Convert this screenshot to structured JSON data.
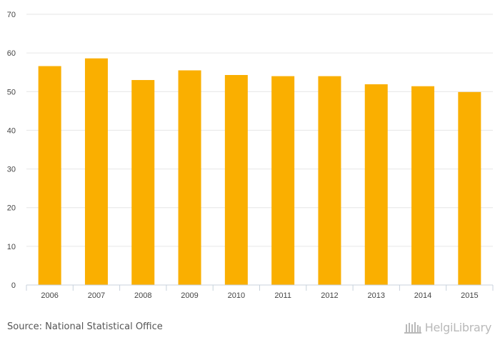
{
  "chart_data": {
    "type": "bar",
    "categories": [
      "2006",
      "2007",
      "2008",
      "2009",
      "2010",
      "2011",
      "2012",
      "2013",
      "2014",
      "2015"
    ],
    "values": [
      56.6,
      58.6,
      53.0,
      55.5,
      54.3,
      54.0,
      54.0,
      51.9,
      51.4,
      49.9
    ],
    "ylim": [
      0,
      70
    ],
    "yticks": [
      0,
      10,
      20,
      30,
      40,
      50,
      60,
      70
    ],
    "title": "",
    "xlabel": "",
    "ylabel": "",
    "grid": true,
    "bar_color": "#FAAF00"
  },
  "footer": {
    "source": "Source: National Statistical Office",
    "brand": "HelgiLibrary"
  },
  "colors": {
    "grid": "#e6e6e6",
    "axis": "#c8d2dc",
    "brand": "#b9b9b9"
  }
}
